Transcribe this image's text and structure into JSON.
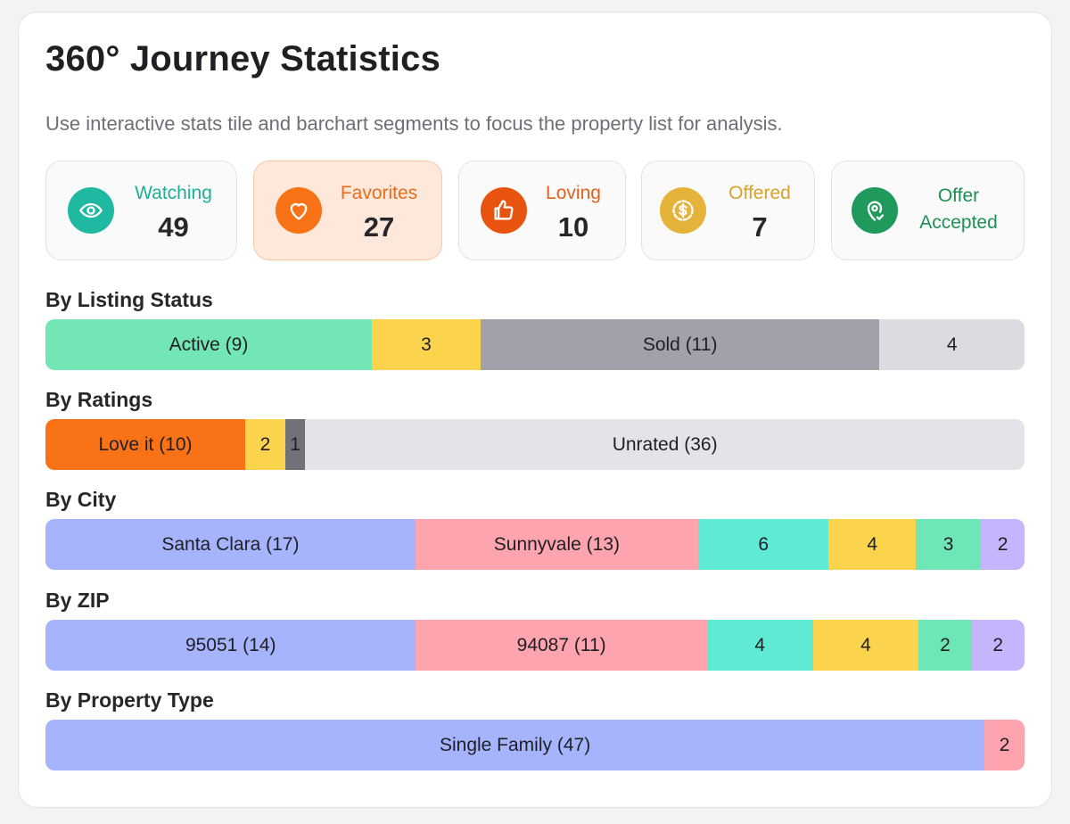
{
  "header": {
    "title": "360° Journey Statistics",
    "subtitle": "Use interactive stats tile and barchart segments to focus the property list for analysis."
  },
  "tiles": [
    {
      "label": "Watching",
      "value": "49",
      "icon": "eye-icon",
      "color": "#1fb8a0",
      "label_color": "#1fae98"
    },
    {
      "label": "Favorites",
      "value": "27",
      "icon": "heart-icon",
      "color": "#f97316",
      "label_color": "#ea6d1a",
      "active": true
    },
    {
      "label": "Loving",
      "value": "10",
      "icon": "thumbs-up-icon",
      "color": "#e8540f",
      "label_color": "#e5601b"
    },
    {
      "label": "Offered",
      "value": "7",
      "icon": "dollar-icon",
      "color": "#e5b33a",
      "label_color": "#d9a22c"
    },
    {
      "label_line1": "Offer",
      "label_line2": "Accepted",
      "icon": "location-check-icon",
      "color": "#1f9a5c",
      "label_color": "#1f8f55"
    }
  ],
  "sections": [
    {
      "label": "By Listing Status",
      "segments": [
        {
          "text": "Active (9)",
          "value": 9,
          "color": "#72e6b5"
        },
        {
          "text": "3",
          "value": 3,
          "color": "#fcd34d"
        },
        {
          "text": "Sold (11)",
          "value": 11,
          "color": "#a1a1aa"
        },
        {
          "text": "4",
          "value": 4,
          "color": "#dcdce0"
        }
      ]
    },
    {
      "label": "By Ratings",
      "segments": [
        {
          "text": "Love it (10)",
          "value": 10,
          "color": "#f97316"
        },
        {
          "text": "2",
          "value": 2,
          "color": "#fcd34d"
        },
        {
          "text": "1",
          "value": 1,
          "color": "#71717a"
        },
        {
          "text": "Unrated (36)",
          "value": 36,
          "color": "#e4e4e8"
        }
      ]
    },
    {
      "label": "By City",
      "segments": [
        {
          "text": "Santa Clara (17)",
          "value": 17,
          "color": "#a5b4fc"
        },
        {
          "text": "Sunnyvale (13)",
          "value": 13,
          "color": "#fda4af"
        },
        {
          "text": "6",
          "value": 6,
          "color": "#5eead4"
        },
        {
          "text": "4",
          "value": 4,
          "color": "#fcd34d"
        },
        {
          "text": "3",
          "value": 3,
          "color": "#6ee7b7"
        },
        {
          "text": "2",
          "value": 2,
          "color": "#c4b5fd"
        }
      ]
    },
    {
      "label": "By ZIP",
      "segments": [
        {
          "text": "95051 (14)",
          "value": 14,
          "color": "#a5b4fc"
        },
        {
          "text": "94087 (11)",
          "value": 11,
          "color": "#fda4af"
        },
        {
          "text": "4",
          "value": 4,
          "color": "#5eead4"
        },
        {
          "text": "4",
          "value": 4,
          "color": "#fcd34d"
        },
        {
          "text": "2",
          "value": 2,
          "color": "#6ee7b7"
        },
        {
          "text": "2",
          "value": 2,
          "color": "#c4b5fd"
        }
      ]
    },
    {
      "label": "By Property Type",
      "segments": [
        {
          "text": "Single Family (47)",
          "value": 47,
          "color": "#a5b4fc"
        },
        {
          "text": "2",
          "value": 2,
          "color": "#fda4af"
        }
      ]
    }
  ]
}
